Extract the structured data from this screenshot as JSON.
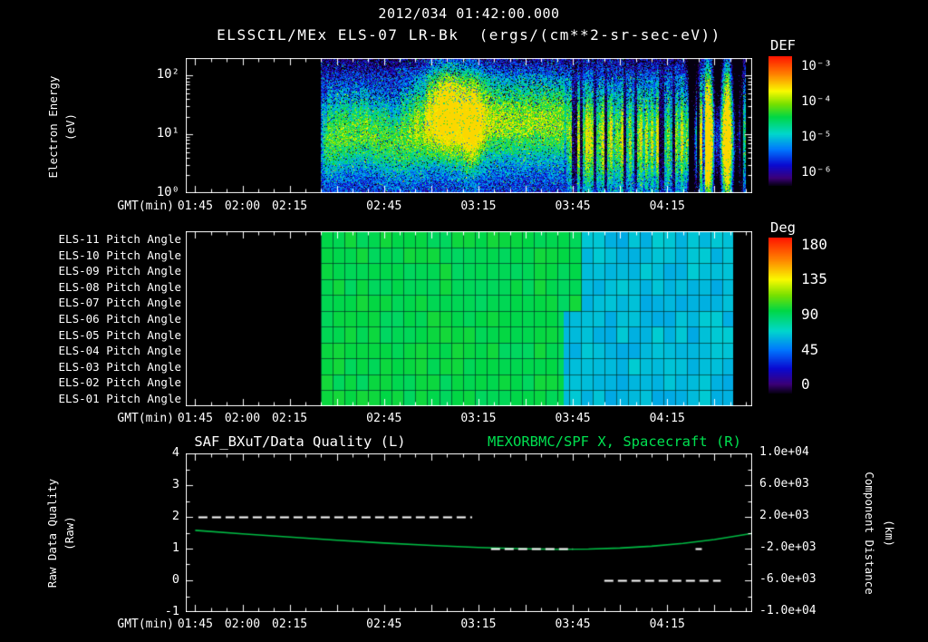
{
  "header": {
    "datetime": "2012/034 01:42:00.000",
    "instrument_title": "ELSSCIL/MEx ELS-07 LR-Bk  (ergs/(cm**2-sr-sec-eV))"
  },
  "colors": {
    "background": "#000000",
    "text": "#ffffff",
    "title_green": "#00e050",
    "curve_green": "#00bb44",
    "grid_teal": "rgba(0,45,35,0.65)",
    "rainbow_stops": [
      [
        0,
        5,
        0,
        15
      ],
      [
        0.06,
        60,
        0,
        120
      ],
      [
        0.16,
        10,
        10,
        210
      ],
      [
        0.28,
        0,
        120,
        255
      ],
      [
        0.4,
        0,
        215,
        205
      ],
      [
        0.53,
        0,
        215,
        70
      ],
      [
        0.63,
        120,
        225,
        0
      ],
      [
        0.73,
        250,
        250,
        0
      ],
      [
        0.86,
        255,
        130,
        0
      ],
      [
        1,
        255,
        20,
        0
      ]
    ]
  },
  "time_axis": {
    "label": "GMT(min)",
    "start": "01:42",
    "end": "04:42",
    "tick_labels": [
      "01:45",
      "02:00",
      "02:15",
      "02:45",
      "03:15",
      "03:45",
      "04:15"
    ],
    "major_tick_min": 15,
    "minor_tick_min": 5
  },
  "chart_data": [
    {
      "id": "electron-energy-spectrogram",
      "type": "heatmap",
      "title": "ELSSCIL/MEx ELS-07 LR-Bk",
      "units": "ergs/(cm**2-sr-sec-eV)",
      "colorbar_title": "DEF",
      "xlabel": "GMT(min)",
      "ylabel_lines": [
        "Electron Energy",
        "(eV)"
      ],
      "y_scale": "log",
      "y_tick_labels": [
        "10²",
        "10¹",
        "10⁰"
      ],
      "y_tick_decades": [
        2,
        1,
        0
      ],
      "y_range_decades": [
        0,
        2.3
      ],
      "colorbar_tick_labels": [
        "10⁻³",
        "10⁻⁴",
        "10⁻⁵",
        "10⁻⁶"
      ],
      "colorbar_tick_values": [
        -3,
        -4,
        -5,
        -6
      ],
      "colorbar_range_log10": [
        -2.7,
        -6.35
      ],
      "data_start": "02:25",
      "data_end": "04:40",
      "features": {
        "background_log10_flux": -5.75,
        "low_energy_band": {
          "from": "02:25",
          "to": "03:12",
          "center_log10_ev": 0.9,
          "peak_log10_flux": -4.3
        },
        "injection_blob": {
          "at": "03:06",
          "center_log10_ev": 1.55,
          "peak_log10_flux": -3.7
        },
        "main_band": {
          "from": "03:10",
          "to": "03:43",
          "center_log10_ev": 1.22,
          "peak_log10_flux": -4.0
        },
        "striated_region": {
          "from": "03:43",
          "to": "04:40",
          "center_log10_ev": 0.92,
          "peak_log10_flux": -4.5
        },
        "bright_streaks": [
          "04:28",
          "04:34"
        ],
        "data_gaps": [
          "04:23",
          "04:31",
          "04:37"
        ]
      }
    },
    {
      "id": "pitch-angle-grid",
      "type": "heatmap",
      "colorbar_title": "Deg",
      "row_labels": [
        "ELS-11 Pitch Angle",
        "ELS-10 Pitch Angle",
        "ELS-09 Pitch Angle",
        "ELS-08 Pitch Angle",
        "ELS-07 Pitch Angle",
        "ELS-06 Pitch Angle",
        "ELS-05 Pitch Angle",
        "ELS-04 Pitch Angle",
        "ELS-03 Pitch Angle",
        "ELS-02 Pitch Angle",
        "ELS-01 Pitch Angle"
      ],
      "colorbar_tick_labels": [
        "180",
        "135",
        "90",
        "45",
        "0"
      ],
      "colorbar_tick_values": [
        180,
        135,
        90,
        45,
        0
      ],
      "colorbar_range_deg": [
        190,
        -10
      ],
      "data_start": "02:25",
      "data_end": "04:36",
      "values": {
        "pitch_deg_early": 95,
        "pitch_deg_late": 63,
        "transition_lower_rows": "03:42",
        "transition_upper_rows": "03:48",
        "cell_minutes": 3.75
      }
    },
    {
      "id": "quality-and-spacecraft",
      "type": "line",
      "left_title": "SAF_BXuT/Data Quality (L)",
      "right_title": "MEXORBMC/SPF X, Spacecraft (R)",
      "left_ylabel_lines": [
        "Raw Data Quality",
        "(Raw)"
      ],
      "right_ylabel_lines": [
        "Component Distance",
        "(km)"
      ],
      "left_ylim": [
        -1,
        4
      ],
      "right_ylim": [
        -10000,
        10000
      ],
      "left_tick_labels": [
        "4",
        "3",
        "2",
        "1",
        "0",
        "-1"
      ],
      "left_tick_values": [
        4,
        3,
        2,
        1,
        0,
        -1
      ],
      "right_tick_labels": [
        "1.0e+04",
        "6.0e+03",
        "2.0e+03",
        "-2.0e+03",
        "-6.0e+03",
        "-1.0e+04"
      ],
      "series": [
        {
          "name": "SAF_BXuT/Data Quality",
          "axis": "left",
          "style": "dashed_white",
          "segments": [
            {
              "value": 2,
              "from": "01:46",
              "to": "03:13"
            },
            {
              "value": 1,
              "from": "03:19",
              "to": "03:45"
            },
            {
              "value": 1,
              "from": "04:24",
              "to": "04:26"
            },
            {
              "value": 0,
              "from": "03:55",
              "to": "04:32"
            }
          ]
        },
        {
          "name": "MEXORBMC/SPF X Spacecraft",
          "axis": "right",
          "style": "solid_green",
          "points": [
            [
              "01:45",
              300
            ],
            [
              "02:00",
              -150
            ],
            [
              "02:15",
              -550
            ],
            [
              "02:30",
              -950
            ],
            [
              "02:45",
              -1300
            ],
            [
              "03:00",
              -1600
            ],
            [
              "03:15",
              -1850
            ],
            [
              "03:30",
              -2030
            ],
            [
              "03:40",
              -2080
            ],
            [
              "03:50",
              -2060
            ],
            [
              "04:00",
              -1930
            ],
            [
              "04:10",
              -1700
            ],
            [
              "04:20",
              -1350
            ],
            [
              "04:30",
              -850
            ],
            [
              "04:38",
              -350
            ],
            [
              "04:42",
              -80
            ]
          ]
        }
      ]
    }
  ]
}
